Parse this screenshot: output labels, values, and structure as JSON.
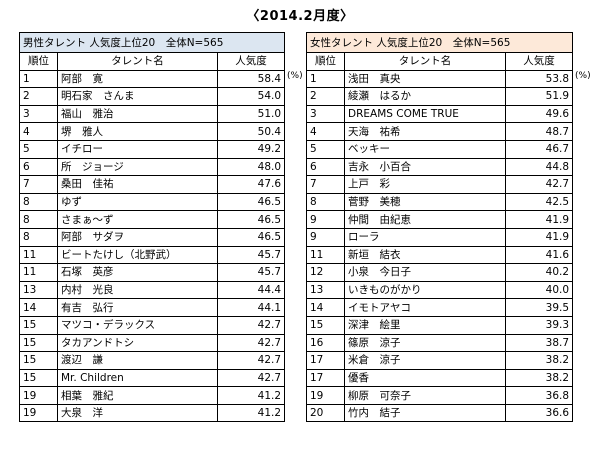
{
  "title": "〈2014.2月度〉",
  "unit": "(%)",
  "male": {
    "caption": "男性タレント 人気度上位20　全体N=565",
    "columns": [
      "順位",
      "タレント名",
      "人気度"
    ],
    "rows": [
      {
        "rank": "1",
        "name": "阿部　寛",
        "score": "58.4"
      },
      {
        "rank": "2",
        "name": "明石家　さんま",
        "score": "54.0"
      },
      {
        "rank": "3",
        "name": "福山　雅治",
        "score": "51.0"
      },
      {
        "rank": "4",
        "name": "堺　雅人",
        "score": "50.4"
      },
      {
        "rank": "5",
        "name": "イチロー",
        "score": "49.2"
      },
      {
        "rank": "6",
        "name": "所　ジョージ",
        "score": "48.0"
      },
      {
        "rank": "7",
        "name": "桑田　佳祐",
        "score": "47.6"
      },
      {
        "rank": "8",
        "name": "ゆず",
        "score": "46.5"
      },
      {
        "rank": "8",
        "name": "さまぁ～ず",
        "score": "46.5"
      },
      {
        "rank": "8",
        "name": "阿部　サダヲ",
        "score": "46.5"
      },
      {
        "rank": "11",
        "name": "ビートたけし（北野武）",
        "score": "45.7"
      },
      {
        "rank": "11",
        "name": "石塚　英彦",
        "score": "45.7"
      },
      {
        "rank": "13",
        "name": "内村　光良",
        "score": "44.4"
      },
      {
        "rank": "14",
        "name": "有吉　弘行",
        "score": "44.1"
      },
      {
        "rank": "15",
        "name": "マツコ・デラックス",
        "score": "42.7"
      },
      {
        "rank": "15",
        "name": "タカアンドトシ",
        "score": "42.7"
      },
      {
        "rank": "15",
        "name": "渡辺　謙",
        "score": "42.7"
      },
      {
        "rank": "15",
        "name": "Mr. Children",
        "score": "42.7"
      },
      {
        "rank": "19",
        "name": "相葉　雅紀",
        "score": "41.2"
      },
      {
        "rank": "19",
        "name": "大泉　洋",
        "score": "41.2"
      }
    ]
  },
  "female": {
    "caption": "女性タレント 人気度上位20　全体N=565",
    "columns": [
      "順位",
      "タレント名",
      "人気度"
    ],
    "rows": [
      {
        "rank": "1",
        "name": "浅田　真央",
        "score": "53.8"
      },
      {
        "rank": "2",
        "name": "綾瀬　はるか",
        "score": "51.9"
      },
      {
        "rank": "3",
        "name": "DREAMS COME TRUE",
        "score": "49.6"
      },
      {
        "rank": "4",
        "name": "天海　祐希",
        "score": "48.7"
      },
      {
        "rank": "5",
        "name": "ベッキー",
        "score": "46.7"
      },
      {
        "rank": "6",
        "name": "吉永　小百合",
        "score": "44.8"
      },
      {
        "rank": "7",
        "name": "上戸　彩",
        "score": "42.7"
      },
      {
        "rank": "8",
        "name": "菅野　美穂",
        "score": "42.5"
      },
      {
        "rank": "9",
        "name": "仲間　由紀恵",
        "score": "41.9"
      },
      {
        "rank": "9",
        "name": "ローラ",
        "score": "41.9"
      },
      {
        "rank": "11",
        "name": "新垣　結衣",
        "score": "41.6"
      },
      {
        "rank": "12",
        "name": "小泉　今日子",
        "score": "40.2"
      },
      {
        "rank": "13",
        "name": "いきものがかり",
        "score": "40.0"
      },
      {
        "rank": "14",
        "name": "イモトアヤコ",
        "score": "39.5"
      },
      {
        "rank": "15",
        "name": "深津　絵里",
        "score": "39.3"
      },
      {
        "rank": "16",
        "name": "篠原　涼子",
        "score": "38.7"
      },
      {
        "rank": "17",
        "name": "米倉　涼子",
        "score": "38.2"
      },
      {
        "rank": "17",
        "name": "優香",
        "score": "38.2"
      },
      {
        "rank": "19",
        "name": "柳原　可奈子",
        "score": "36.8"
      },
      {
        "rank": "20",
        "name": "竹内　結子",
        "score": "36.6"
      }
    ]
  }
}
